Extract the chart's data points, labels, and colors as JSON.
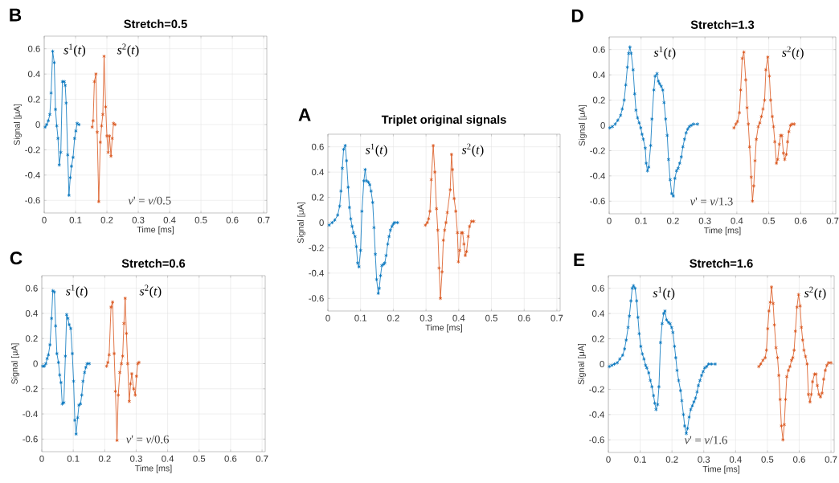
{
  "chart_data": [
    {
      "type": "line",
      "title": "Stretch=0.5",
      "xlabel": "Time [ms]",
      "ylabel": "Signal [μA]",
      "annotations": [
        "B",
        "*v*' = *v*/0.5"
      ],
      "xlim": [
        0,
        0.71
      ],
      "ylim": [
        -0.7,
        0.7
      ],
      "xticks": [
        0,
        0.1,
        0.2,
        0.3,
        0.4,
        0.5,
        0.6,
        0.7
      ],
      "yticks": [
        -0.6,
        -0.4,
        -0.2,
        0,
        0.2,
        0.4,
        0.6
      ],
      "grid": true,
      "marker": "cross",
      "line_style": "solid",
      "series": [
        {
          "name": "*s*$^{1}$(*t*)",
          "color": "#0072bd",
          "x": [
            0.003,
            0.008,
            0.013,
            0.018,
            0.022,
            0.027,
            0.032,
            0.036,
            0.04,
            0.044,
            0.048,
            0.053,
            0.058,
            0.064,
            0.067,
            0.07,
            0.075,
            0.079,
            0.083,
            0.087,
            0.092,
            0.097,
            0.101,
            0.105,
            0.111
          ],
          "values": [
            -0.02,
            0.0,
            0.03,
            0.08,
            0.25,
            0.58,
            0.49,
            0.12,
            -0.01,
            -0.11,
            -0.32,
            -0.22,
            0.34,
            0.34,
            0.31,
            0.17,
            -0.24,
            -0.56,
            -0.42,
            -0.33,
            -0.26,
            -0.11,
            -0.05,
            0.01,
            0.0
          ]
        },
        {
          "name": "*s*$^{2}$(*t*)",
          "color": "#d95319",
          "x": [
            0.153,
            0.156,
            0.16,
            0.165,
            0.169,
            0.174,
            0.179,
            0.183,
            0.187,
            0.191,
            0.196,
            0.2,
            0.204,
            0.208,
            0.213,
            0.217,
            0.221,
            0.226
          ],
          "values": [
            -0.02,
            0.03,
            0.34,
            0.4,
            -0.06,
            -0.61,
            -0.14,
            -0.01,
            0.08,
            0.54,
            0.14,
            -0.09,
            -0.22,
            -0.09,
            -0.25,
            -0.11,
            0.01,
            0.0
          ]
        }
      ]
    },
    {
      "type": "line",
      "title": "Stretch=1.3",
      "xlabel": "Time [ms]",
      "ylabel": "Signal [μA]",
      "annotations": [
        "D",
        "*v*' = *v*/1.3"
      ],
      "xlim": [
        0,
        0.71
      ],
      "ylim": [
        -0.7,
        0.7
      ],
      "xticks": [
        0,
        0.1,
        0.2,
        0.3,
        0.4,
        0.5,
        0.6,
        0.7
      ],
      "yticks": [
        -0.6,
        -0.4,
        -0.2,
        0,
        0.2,
        0.4,
        0.6
      ],
      "grid": true,
      "marker": "cross",
      "line_style": "solid",
      "series": [
        {
          "name": "*s*$^{1}$(*t*)",
          "color": "#0072bd",
          "x": [
            0.002,
            0.01,
            0.019,
            0.027,
            0.036,
            0.041,
            0.047,
            0.052,
            0.057,
            0.061,
            0.065,
            0.069,
            0.075,
            0.08,
            0.084,
            0.089,
            0.094,
            0.099,
            0.103,
            0.107,
            0.113,
            0.116,
            0.12,
            0.124,
            0.13,
            0.134,
            0.14,
            0.144,
            0.15,
            0.154,
            0.158,
            0.163,
            0.168,
            0.172,
            0.177,
            0.182,
            0.186,
            0.191,
            0.196,
            0.201,
            0.206,
            0.211,
            0.216,
            0.221,
            0.226,
            0.231,
            0.236,
            0.241,
            0.246,
            0.251,
            0.257,
            0.264,
            0.277
          ],
          "values": [
            -0.02,
            -0.01,
            0.01,
            0.04,
            0.08,
            0.13,
            0.2,
            0.32,
            0.46,
            0.57,
            0.62,
            0.57,
            0.44,
            0.25,
            0.12,
            0.06,
            0.02,
            -0.02,
            -0.07,
            -0.11,
            -0.18,
            -0.3,
            -0.36,
            -0.33,
            -0.16,
            0.05,
            0.28,
            0.39,
            0.41,
            0.35,
            0.33,
            0.31,
            0.28,
            0.18,
            0.05,
            -0.08,
            -0.27,
            -0.43,
            -0.54,
            -0.56,
            -0.42,
            -0.36,
            -0.34,
            -0.3,
            -0.25,
            -0.17,
            -0.11,
            -0.06,
            -0.03,
            -0.01,
            0.0,
            0.01,
            0.01
          ]
        },
        {
          "name": "*s*$^{2}$(*t*)",
          "color": "#d95319",
          "x": [
            0.391,
            0.397,
            0.402,
            0.408,
            0.412,
            0.417,
            0.422,
            0.428,
            0.432,
            0.436,
            0.44,
            0.445,
            0.449,
            0.453,
            0.457,
            0.461,
            0.467,
            0.472,
            0.477,
            0.482,
            0.487,
            0.491,
            0.497,
            0.502,
            0.506,
            0.511,
            0.515,
            0.519,
            0.524,
            0.528,
            0.533,
            0.537,
            0.541,
            0.546,
            0.55,
            0.555,
            0.559,
            0.563,
            0.568,
            0.573,
            0.58
          ],
          "values": [
            -0.02,
            0.01,
            0.03,
            0.1,
            0.28,
            0.53,
            0.58,
            0.36,
            0.14,
            0.01,
            -0.17,
            -0.41,
            -0.6,
            -0.48,
            -0.28,
            -0.11,
            -0.01,
            0.02,
            0.07,
            0.13,
            0.2,
            0.44,
            0.54,
            0.39,
            0.2,
            0.07,
            -0.01,
            -0.13,
            -0.3,
            -0.27,
            -0.15,
            -0.08,
            -0.08,
            -0.22,
            -0.27,
            -0.23,
            -0.13,
            -0.05,
            0.0,
            0.01,
            0.01
          ]
        }
      ]
    },
    {
      "type": "line",
      "title": "Triplet original signals",
      "xlabel": "Time [ms]",
      "ylabel": "Signal [μA]",
      "annotations": [
        "A"
      ],
      "xlim": [
        0,
        0.71
      ],
      "ylim": [
        -0.7,
        0.7
      ],
      "xticks": [
        0,
        0.1,
        0.2,
        0.3,
        0.4,
        0.5,
        0.6,
        0.7
      ],
      "yticks": [
        -0.6,
        -0.4,
        -0.2,
        0,
        0.2,
        0.4,
        0.6
      ],
      "grid": true,
      "marker": "cross",
      "line_style": "solid",
      "series": [
        {
          "name": "*s*$^{1}$(*t*)",
          "color": "#0072bd",
          "x": [
            0.004,
            0.013,
            0.021,
            0.03,
            0.036,
            0.04,
            0.044,
            0.048,
            0.053,
            0.057,
            0.062,
            0.066,
            0.07,
            0.074,
            0.078,
            0.083,
            0.087,
            0.091,
            0.095,
            0.1,
            0.104,
            0.11,
            0.114,
            0.118,
            0.124,
            0.128,
            0.132,
            0.137,
            0.141,
            0.145,
            0.149,
            0.154,
            0.157,
            0.161,
            0.165,
            0.17,
            0.174,
            0.178,
            0.183,
            0.187,
            0.191,
            0.196,
            0.2,
            0.204,
            0.213
          ],
          "values": [
            -0.02,
            0.0,
            0.02,
            0.06,
            0.13,
            0.25,
            0.43,
            0.58,
            0.61,
            0.49,
            0.28,
            0.12,
            0.03,
            -0.03,
            -0.08,
            -0.11,
            -0.19,
            -0.32,
            -0.35,
            -0.22,
            0.09,
            0.33,
            0.42,
            0.33,
            0.32,
            0.3,
            0.25,
            0.16,
            -0.04,
            -0.25,
            -0.45,
            -0.56,
            -0.52,
            -0.42,
            -0.34,
            -0.33,
            -0.32,
            -0.26,
            -0.17,
            -0.11,
            -0.06,
            -0.03,
            -0.01,
            0.0,
            0.0
          ]
        },
        {
          "name": "*s*$^{2}$(*t*)",
          "color": "#d95319",
          "x": [
            0.298,
            0.304,
            0.308,
            0.312,
            0.316,
            0.322,
            0.327,
            0.332,
            0.336,
            0.34,
            0.344,
            0.349,
            0.353,
            0.357,
            0.361,
            0.365,
            0.374,
            0.378,
            0.381,
            0.386,
            0.391,
            0.396,
            0.399,
            0.403,
            0.408,
            0.412,
            0.416,
            0.42,
            0.424,
            0.429,
            0.433,
            0.439,
            0.446
          ],
          "values": [
            -0.02,
            0.0,
            0.03,
            0.09,
            0.34,
            0.61,
            0.4,
            0.11,
            -0.06,
            -0.36,
            -0.6,
            -0.39,
            -0.14,
            -0.06,
            0.0,
            0.08,
            0.26,
            0.54,
            0.42,
            0.19,
            0.09,
            -0.08,
            -0.31,
            -0.22,
            -0.08,
            -0.08,
            -0.17,
            -0.26,
            -0.23,
            -0.11,
            -0.03,
            0.01,
            0.01
          ]
        }
      ]
    },
    {
      "type": "line",
      "title": "Stretch=0.6",
      "xlabel": "Time [ms]",
      "ylabel": "Signal [μA]",
      "annotations": [
        "C",
        "*v*' = *v*/0.6"
      ],
      "xlim": [
        0,
        0.71
      ],
      "ylim": [
        -0.7,
        0.7
      ],
      "xticks": [
        0,
        0.1,
        0.2,
        0.3,
        0.4,
        0.5,
        0.6,
        0.7
      ],
      "yticks": [
        -0.6,
        -0.4,
        -0.2,
        0,
        0.2,
        0.4,
        0.6
      ],
      "grid": true,
      "marker": "cross",
      "line_style": "solid",
      "series": [
        {
          "name": "*s*$^{1}$(*t*)",
          "color": "#0072bd",
          "x": [
            0.003,
            0.008,
            0.013,
            0.017,
            0.021,
            0.026,
            0.031,
            0.035,
            0.04,
            0.044,
            0.048,
            0.053,
            0.057,
            0.061,
            0.065,
            0.07,
            0.075,
            0.079,
            0.083,
            0.087,
            0.092,
            0.097,
            0.101,
            0.105,
            0.109,
            0.114,
            0.118,
            0.123,
            0.127,
            0.131,
            0.136,
            0.14,
            0.144,
            0.151
          ],
          "values": [
            -0.02,
            -0.02,
            0.0,
            0.04,
            0.07,
            0.15,
            0.36,
            0.58,
            0.57,
            0.3,
            0.08,
            0.01,
            -0.09,
            -0.15,
            -0.32,
            -0.31,
            0.06,
            0.39,
            0.36,
            0.31,
            0.28,
            0.08,
            -0.14,
            -0.45,
            -0.56,
            -0.43,
            -0.33,
            -0.32,
            -0.25,
            -0.14,
            -0.07,
            -0.03,
            0.0,
            0.0
          ]
        },
        {
          "name": "*s*$^{2}$(*t*)",
          "color": "#d95319",
          "x": [
            0.206,
            0.21,
            0.214,
            0.22,
            0.225,
            0.23,
            0.234,
            0.239,
            0.243,
            0.248,
            0.253,
            0.257,
            0.261,
            0.265,
            0.269,
            0.273,
            0.278,
            0.282,
            0.286,
            0.292,
            0.297,
            0.301,
            0.305,
            0.309
          ],
          "values": [
            -0.02,
            0.01,
            0.07,
            0.45,
            0.49,
            0.08,
            -0.22,
            -0.61,
            -0.25,
            -0.07,
            0.0,
            0.06,
            0.32,
            0.52,
            0.24,
            0.0,
            -0.3,
            -0.16,
            -0.08,
            -0.2,
            -0.25,
            -0.1,
            0.0,
            0.01
          ]
        }
      ]
    },
    {
      "type": "line",
      "title": "Stretch=1.6",
      "xlabel": "Time [ms]",
      "ylabel": "Signal [μA]",
      "annotations": [
        "E",
        "*v*' = *v*/1.6"
      ],
      "xlim": [
        0,
        0.71
      ],
      "ylim": [
        -0.7,
        0.7
      ],
      "xticks": [
        0,
        0.1,
        0.2,
        0.3,
        0.4,
        0.5,
        0.6,
        0.7
      ],
      "yticks": [
        -0.6,
        -0.4,
        -0.2,
        0,
        0.2,
        0.4,
        0.6
      ],
      "grid": true,
      "marker": "cross",
      "line_style": "solid",
      "series": [
        {
          "name": "*s*$^{1}$(*t*)",
          "color": "#0072bd",
          "x": [
            0.003,
            0.011,
            0.019,
            0.028,
            0.036,
            0.045,
            0.051,
            0.056,
            0.062,
            0.066,
            0.071,
            0.075,
            0.079,
            0.084,
            0.089,
            0.093,
            0.097,
            0.102,
            0.107,
            0.112,
            0.117,
            0.121,
            0.127,
            0.132,
            0.137,
            0.142,
            0.146,
            0.15,
            0.155,
            0.159,
            0.164,
            0.169,
            0.174,
            0.178,
            0.183,
            0.189,
            0.194,
            0.199,
            0.203,
            0.208,
            0.212,
            0.216,
            0.221,
            0.227,
            0.231,
            0.236,
            0.24,
            0.245,
            0.249,
            0.254,
            0.259,
            0.264,
            0.269,
            0.274,
            0.279,
            0.283,
            0.288,
            0.293,
            0.298,
            0.303,
            0.309,
            0.315,
            0.324,
            0.336
          ],
          "values": [
            -0.02,
            -0.01,
            0.0,
            0.01,
            0.04,
            0.07,
            0.12,
            0.19,
            0.29,
            0.38,
            0.5,
            0.6,
            0.62,
            0.6,
            0.5,
            0.37,
            0.24,
            0.14,
            0.08,
            0.04,
            -0.01,
            -0.03,
            -0.07,
            -0.13,
            -0.18,
            -0.25,
            -0.31,
            -0.36,
            -0.32,
            -0.18,
            0.17,
            0.32,
            0.4,
            0.42,
            0.35,
            0.33,
            0.32,
            0.29,
            0.25,
            0.14,
            0.05,
            -0.05,
            -0.13,
            -0.21,
            -0.29,
            -0.4,
            -0.49,
            -0.55,
            -0.51,
            -0.42,
            -0.36,
            -0.33,
            -0.3,
            -0.27,
            -0.22,
            -0.17,
            -0.13,
            -0.09,
            -0.06,
            -0.03,
            -0.02,
            0.0,
            0.0,
            0.0
          ]
        },
        {
          "name": "*s*$^{2}$(*t*)",
          "color": "#d95319",
          "x": [
            0.473,
            0.479,
            0.486,
            0.493,
            0.497,
            0.501,
            0.505,
            0.509,
            0.513,
            0.518,
            0.522,
            0.527,
            0.532,
            0.536,
            0.54,
            0.544,
            0.549,
            0.553,
            0.557,
            0.561,
            0.566,
            0.571,
            0.576,
            0.58,
            0.584,
            0.588,
            0.593,
            0.598,
            0.603,
            0.607,
            0.611,
            0.615,
            0.62,
            0.625,
            0.629,
            0.634,
            0.638,
            0.642,
            0.648,
            0.653,
            0.657,
            0.662,
            0.667,
            0.672,
            0.677,
            0.682,
            0.687,
            0.692,
            0.7
          ],
          "values": [
            -0.02,
            0.0,
            0.03,
            0.05,
            0.11,
            0.28,
            0.42,
            0.49,
            0.61,
            0.48,
            0.31,
            0.13,
            0.05,
            -0.09,
            -0.28,
            -0.49,
            -0.6,
            -0.48,
            -0.28,
            -0.1,
            -0.05,
            -0.02,
            0.03,
            0.05,
            0.11,
            0.26,
            0.45,
            0.55,
            0.46,
            0.29,
            0.19,
            0.11,
            0.06,
            0.0,
            -0.24,
            -0.3,
            -0.24,
            -0.14,
            -0.08,
            -0.08,
            -0.17,
            -0.24,
            -0.26,
            -0.23,
            -0.12,
            -0.05,
            -0.01,
            0.01,
            0.01
          ]
        }
      ]
    }
  ]
}
